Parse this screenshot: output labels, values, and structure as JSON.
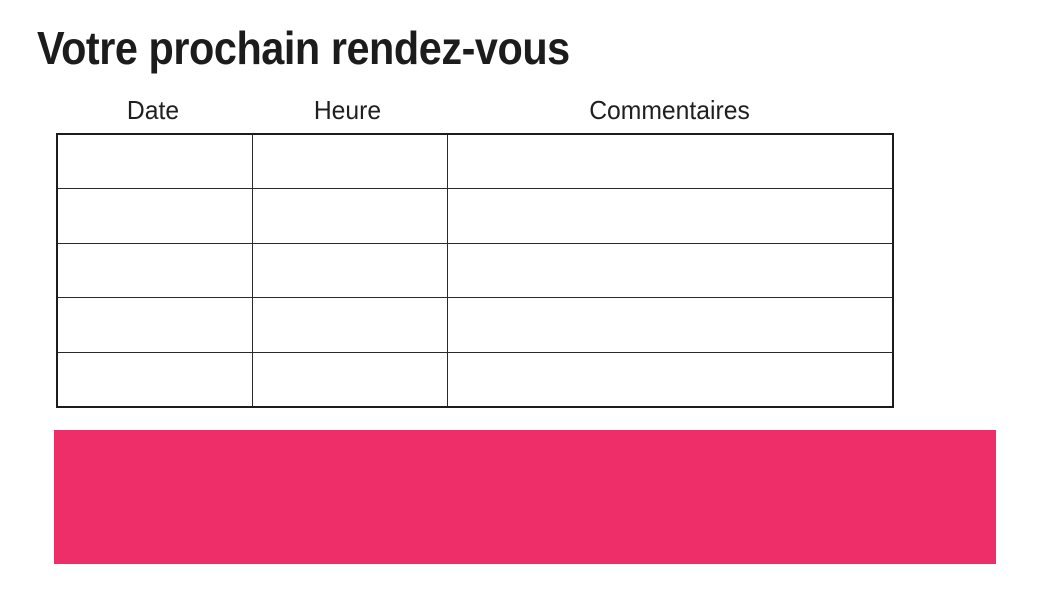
{
  "page": {
    "title": "Votre prochain rendez-vous",
    "background_color": "#ffffff",
    "text_color": "#1c1c1c"
  },
  "appointments_table": {
    "columns": [
      {
        "label": "Date"
      },
      {
        "label": "Heure"
      },
      {
        "label": "Commentaires"
      }
    ],
    "rows": [
      [
        "",
        "",
        ""
      ],
      [
        "",
        "",
        ""
      ],
      [
        "",
        "",
        ""
      ],
      [
        "",
        "",
        ""
      ],
      [
        "",
        "",
        ""
      ]
    ],
    "border_color": "#1c1c1c"
  },
  "highlight_bar": {
    "color": "#ED2E68"
  }
}
